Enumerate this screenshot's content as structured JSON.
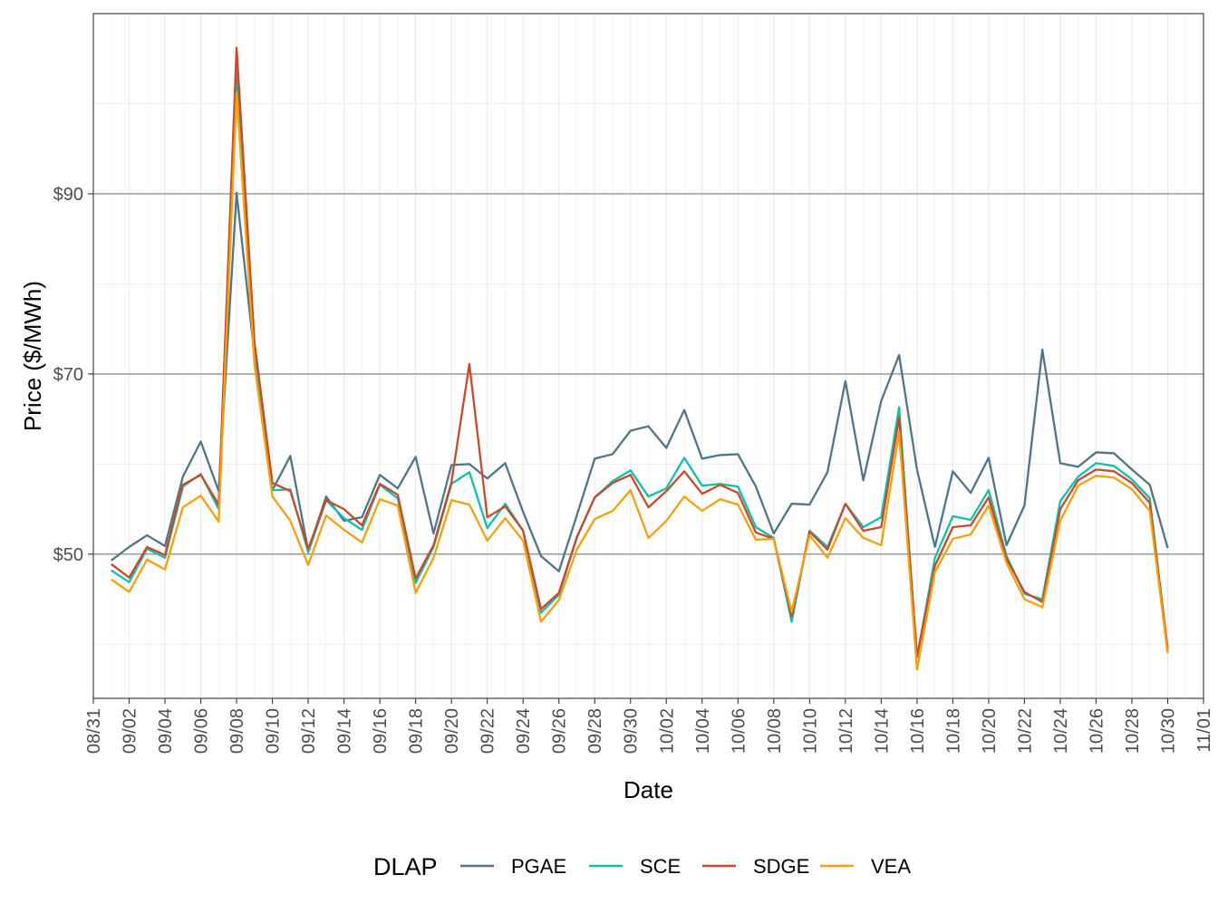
{
  "chart_data": {
    "type": "line",
    "xlabel": "Date",
    "ylabel": "Price ($/MWh)",
    "ylim": [
      34,
      110
    ],
    "y_ticks": [
      {
        "value": 50,
        "label": "$50"
      },
      {
        "value": 70,
        "label": "$70"
      },
      {
        "value": 90,
        "label": "$90"
      }
    ],
    "x_domain": [
      "2022-08-31",
      "2022-11-01"
    ],
    "x_ticks": [
      "08/31",
      "09/02",
      "09/04",
      "09/06",
      "09/08",
      "09/10",
      "09/12",
      "09/14",
      "09/16",
      "09/18",
      "09/20",
      "09/22",
      "09/24",
      "09/26",
      "09/28",
      "09/30",
      "10/02",
      "10/04",
      "10/06",
      "10/08",
      "10/10",
      "10/12",
      "10/14",
      "10/16",
      "10/18",
      "10/20",
      "10/22",
      "10/24",
      "10/26",
      "10/28",
      "10/30",
      "11/01"
    ],
    "x_tick_dates": [
      "2022-08-31",
      "2022-09-02",
      "2022-09-04",
      "2022-09-06",
      "2022-09-08",
      "2022-09-10",
      "2022-09-12",
      "2022-09-14",
      "2022-09-16",
      "2022-09-18",
      "2022-09-20",
      "2022-09-22",
      "2022-09-24",
      "2022-09-26",
      "2022-09-28",
      "2022-09-30",
      "2022-10-02",
      "2022-10-04",
      "2022-10-06",
      "2022-10-08",
      "2022-10-10",
      "2022-10-12",
      "2022-10-14",
      "2022-10-16",
      "2022-10-18",
      "2022-10-20",
      "2022-10-22",
      "2022-10-24",
      "2022-10-26",
      "2022-10-28",
      "2022-10-30",
      "2022-11-01"
    ],
    "x_start": "2022-09-01",
    "x_end": "2022-10-31",
    "grid": true,
    "legend": {
      "title": "DLAP",
      "position": "bottom"
    },
    "series": [
      {
        "name": "PGAE",
        "color": "#4f7589",
        "values": [
          49.3,
          50.8,
          52.1,
          50.9,
          58.6,
          62.5,
          57.0,
          90.1,
          72.0,
          57.1,
          60.9,
          50.4,
          56.4,
          53.7,
          54.1,
          58.8,
          57.3,
          60.8,
          52.3,
          59.9,
          60.0,
          58.4,
          60.1,
          54.7,
          49.8,
          48.1,
          54.3,
          60.6,
          61.1,
          63.7,
          64.2,
          61.8,
          66.0,
          60.6,
          61.0,
          61.1,
          57.5,
          52.3,
          55.6,
          55.5,
          59.1,
          69.2,
          58.2,
          67.0,
          72.1,
          59.4,
          50.8,
          59.2,
          56.8,
          60.7,
          51.0,
          55.4,
          72.7,
          60.1,
          59.7,
          61.3,
          61.2,
          59.4,
          57.7,
          50.7
        ]
      },
      {
        "name": "SCE",
        "color": "#10bfae",
        "values": [
          48.2,
          46.9,
          50.6,
          49.6,
          57.5,
          58.9,
          55.0,
          103.5,
          72.0,
          57.1,
          57.2,
          50.2,
          56.0,
          54.0,
          52.7,
          57.7,
          56.2,
          46.8,
          50.8,
          57.8,
          59.1,
          52.9,
          55.6,
          52.6,
          43.5,
          45.5,
          51.8,
          56.3,
          58.1,
          59.3,
          56.4,
          57.3,
          60.7,
          57.6,
          57.8,
          57.5,
          53.0,
          51.8,
          42.5,
          52.6,
          50.8,
          55.6,
          53.0,
          54.1,
          66.3,
          38.5,
          49.6,
          54.2,
          53.8,
          57.1,
          49.8,
          45.6,
          45.0,
          55.9,
          58.6,
          60.1,
          59.8,
          58.3,
          56.2,
          39.2
        ]
      },
      {
        "name": "SDGE",
        "color": "#c74a2a",
        "values": [
          48.9,
          47.4,
          50.8,
          49.9,
          57.7,
          58.8,
          55.5,
          106.2,
          73.5,
          57.9,
          57.0,
          50.6,
          56.0,
          55.0,
          53.2,
          57.8,
          56.6,
          47.3,
          51.0,
          58.0,
          71.1,
          54.1,
          55.3,
          52.6,
          43.9,
          45.7,
          51.9,
          56.3,
          57.9,
          58.8,
          55.2,
          57.0,
          59.2,
          56.7,
          57.7,
          56.8,
          52.4,
          51.7,
          43.1,
          52.5,
          50.5,
          55.6,
          52.6,
          53.0,
          65.2,
          38.7,
          48.7,
          53.0,
          53.2,
          56.3,
          49.5,
          45.8,
          44.7,
          55.0,
          58.2,
          59.4,
          59.2,
          57.9,
          55.7,
          39.5
        ]
      },
      {
        "name": "VEA",
        "color": "#f5a00e",
        "values": [
          47.2,
          45.8,
          49.4,
          48.3,
          55.2,
          56.5,
          53.6,
          101.2,
          71.0,
          56.4,
          53.7,
          48.8,
          54.3,
          52.7,
          51.3,
          56.1,
          55.4,
          45.7,
          49.6,
          56.0,
          55.5,
          51.5,
          54.0,
          51.5,
          42.5,
          44.9,
          50.5,
          53.9,
          54.8,
          57.1,
          51.8,
          53.7,
          56.4,
          54.8,
          56.1,
          55.5,
          51.6,
          51.7,
          43.6,
          52.1,
          49.6,
          54.0,
          51.8,
          51.0,
          63.6,
          37.2,
          48.0,
          51.7,
          52.2,
          55.4,
          49.0,
          45.0,
          44.1,
          53.7,
          57.6,
          58.7,
          58.5,
          57.2,
          54.8,
          39.0
        ]
      }
    ]
  }
}
